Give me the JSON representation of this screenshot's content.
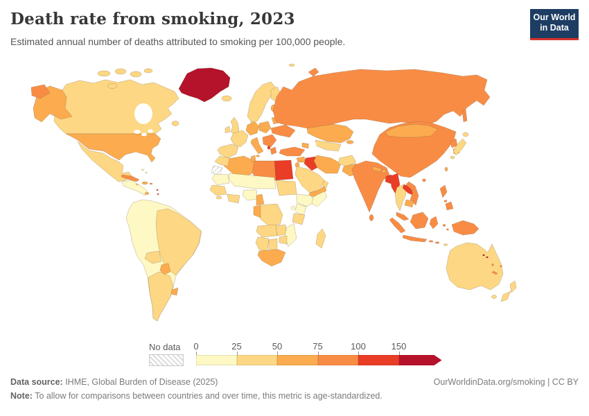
{
  "header": {
    "title": "Death rate from smoking, 2023",
    "subtitle": "Estimated annual number of deaths attributed to smoking per 100,000 people.",
    "logo": {
      "line1": "Our World",
      "line2": "in Data",
      "bg_color": "#1d3d63",
      "accent_color": "#d7332c"
    }
  },
  "legend": {
    "no_data_label": "No data",
    "ticks": [
      "0",
      "25",
      "50",
      "75",
      "100",
      "150"
    ]
  },
  "footer": {
    "source_label": "Data source:",
    "source_text": " IHME, Global Burden of Disease (2025)",
    "credit": "OurWorldinData.org/smoking | CC BY",
    "note_label": "Note:",
    "note_text": " To allow for comparisons between countries and over time, this metric is age-standardized."
  },
  "chart_data": {
    "type": "choropleth",
    "title": "Death rate from smoking, 2023",
    "unit": "estimated annual deaths attributed to smoking per 100,000 people (age-standardized)",
    "year": "2023",
    "legend_position": "bottom",
    "legend_bins": [
      {
        "label": "0-25",
        "color": "#fdf8c4"
      },
      {
        "label": "25-50",
        "color": "#fdd783"
      },
      {
        "label": "50-75",
        "color": "#fcab4f"
      },
      {
        "label": "75-100",
        "color": "#f98c45"
      },
      {
        "label": "100-150",
        "color": "#ea3d26"
      },
      {
        "label": "150+",
        "color": "#b5122b"
      }
    ],
    "no_data_style": "gray-diagonal-hatch",
    "regions": {
      "greenland": "150+",
      "iceland": "25-50",
      "canada": "25-50",
      "canada-arctic-islands": "25-50",
      "newfoundland": "25-50",
      "alaska": "50-75",
      "chukotka-wrap": "75-100",
      "usa": "50-75",
      "mexico": "25-50",
      "central-america": "0-25",
      "panama": "50-75",
      "cuba": "75-100",
      "hispaniola": "50-75",
      "jamaica": "25-50",
      "puerto-rico": "75-100",
      "bahamas": "0-25",
      "lesser-antilles": "100-150",
      "andean-north": "0-25",
      "brazil": "25-50",
      "southern-cone": "25-50",
      "bolivia": "25-50",
      "paraguay": "50-75",
      "uruguay": "50-75",
      "uk": "25-50",
      "ireland": "25-50",
      "norway-sweden": "25-50",
      "finland": "25-50",
      "denmark": "25-50",
      "baltics": "50-75",
      "france": "25-50",
      "iberia": "25-50",
      "germany-central": "50-75",
      "poland": "50-75",
      "belarus": "50-75",
      "ukraine": "75-100",
      "balkans": "75-100",
      "albania": "100-150",
      "italy": "50-75",
      "sicily": "50-75",
      "greece": "75-100",
      "russia": "75-100",
      "novaya-zemlya": "75-100",
      "sakhalin": "75-100",
      "svalbard": "25-50",
      "kazakhstan": "50-75",
      "uzbek-turkmen": "25-50",
      "kyrgyz-tajik": "50-75",
      "caucasus": "50-75",
      "turkey": "75-100",
      "syria": "50-75",
      "iraq": "100-150",
      "iran": "50-75",
      "afghanistan": "25-50",
      "pakistan": "50-75",
      "levant": "50-75",
      "saudi-arabia": "25-50",
      "yemen": "50-75",
      "oman": "25-50",
      "egypt": "100-150",
      "libya": "75-100",
      "algeria": "50-75",
      "tunisia": "50-75",
      "morocco": "25-50",
      "western-sahara": "no-data",
      "mauritania": "0-25",
      "sahel": "0-25",
      "senegal-guinea": "25-50",
      "sierra-liberia": "25-50",
      "ivory-ghana": "25-50",
      "nigeria": "0-25",
      "cameroon": "50-75",
      "sudan": "25-50",
      "ethiopia": "0-25",
      "somalia": "0-25",
      "kenya": "0-25",
      "uganda": "0-25",
      "tanzania": "25-50",
      "drc": "25-50",
      "gabon-congo": "50-75",
      "angola": "25-50",
      "zambia": "25-50",
      "mozambique": "0-25",
      "zimbabwe": "25-50",
      "namibia": "25-50",
      "botswana": "25-50",
      "south-africa": "50-75",
      "madagascar": "25-50",
      "india": "75-100",
      "nepal": "50-75",
      "bhutan": "25-50",
      "bangladesh": "100-150",
      "sri-lanka": "75-100",
      "china": "75-100",
      "hainan": "75-100",
      "mongolia": "50-75",
      "north-korea": "75-100",
      "south-korea": "50-75",
      "japan-hokkaido": "25-50",
      "japan-honshu": "25-50",
      "japan-kyushu": "25-50",
      "taiwan": "50-75",
      "myanmar": "100-150",
      "thailand": "25-50",
      "laos": "100-150",
      "vietnam": "75-100",
      "cambodia": "50-75",
      "malaysia": "75-100",
      "sumatra": "75-100",
      "java": "75-100",
      "borneo": "75-100",
      "sulawesi": "75-100",
      "lesser-sunda": "75-100",
      "moluccas": "75-100",
      "new-guinea": "75-100",
      "philippines-luzon": "75-100",
      "philippines-mindanao": "75-100",
      "timor": "25-50",
      "australia": "25-50",
      "tasmania": "25-50",
      "nz-north": "25-50",
      "nz-south": "25-50",
      "solomons": "150+",
      "vanuatu": "75-100",
      "fiji": "75-100",
      "new-caledonia": "75-100"
    }
  }
}
